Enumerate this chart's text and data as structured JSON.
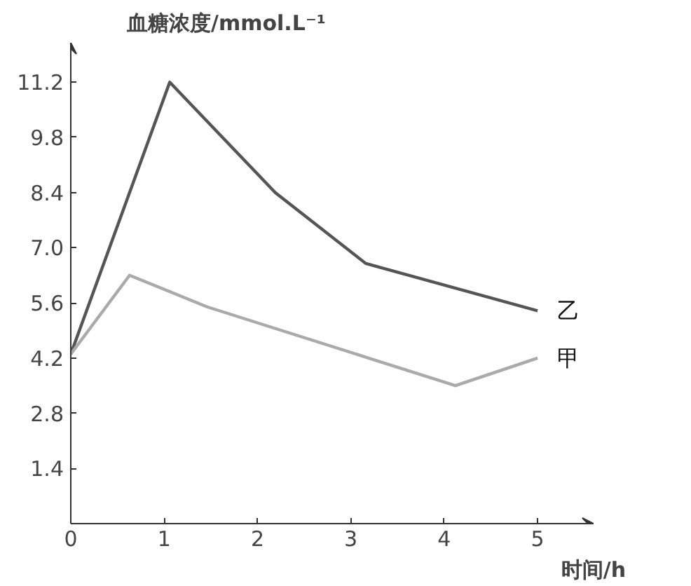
{
  "chart_data": {
    "type": "line",
    "ylabel": "血糖浓度/mmol.L⁻¹",
    "xlabel": "时间/h",
    "xlim": [
      0,
      5.6
    ],
    "ylim": [
      0,
      12.2
    ],
    "xticks": [
      0,
      1,
      2,
      3,
      4,
      5
    ],
    "yticks": [
      1.4,
      2.8,
      4.2,
      5.6,
      {
        "value": 7,
        "label": "7.0"
      },
      8.4,
      9.8,
      11.2
    ],
    "grid": false,
    "marker": "none",
    "line_style": "solid",
    "series": [
      {
        "name": "乙",
        "color": "#555555",
        "x": [
          0,
          1.06,
          2.19,
          3.16,
          5.0
        ],
        "values": [
          4.3,
          11.2,
          8.4,
          6.6,
          5.4
        ]
      },
      {
        "name": "甲",
        "color": "#aaaaaa",
        "x": [
          0,
          0.63,
          1.46,
          4.12,
          5.0
        ],
        "values": [
          4.3,
          6.3,
          5.5,
          3.5,
          4.2
        ]
      }
    ]
  }
}
